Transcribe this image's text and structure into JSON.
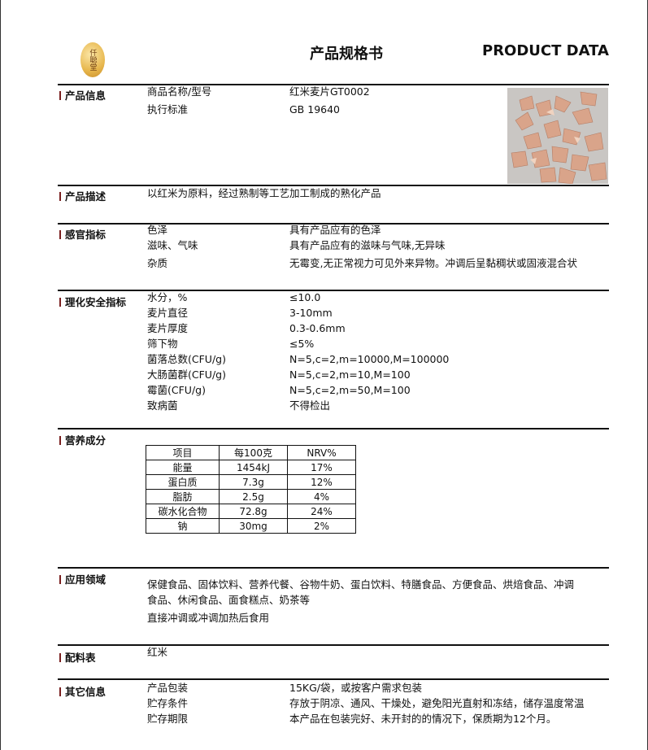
{
  "header": {
    "title_cn": "产品规格书",
    "title_en": "PRODUCT DATA",
    "logo_text": "仟聪堂"
  },
  "sections": {
    "info": {
      "label": "产品信息",
      "rows": [
        [
          "商品名称/型号",
          "红米麦片GT0002"
        ],
        [
          "执行标准",
          "GB 19640"
        ]
      ]
    },
    "desc": {
      "label": "产品描述",
      "text": "以红米为原料，经过熟制等工艺加工制成的熟化产品"
    },
    "sensory": {
      "label": "感官指标",
      "rows": [
        [
          "色泽",
          "具有产品应有的色泽"
        ],
        [
          "滋味、气味",
          "具有产品应有的滋味与气味,无异味"
        ],
        [
          "杂质",
          "无霉变,无正常视力可见外来异物。冲调后呈黏稠状或固液混合状"
        ]
      ]
    },
    "physchem": {
      "label": "理化安全指标",
      "rows": [
        [
          "水分，%",
          "≤10.0"
        ],
        [
          "麦片直径",
          "3-10mm"
        ],
        [
          "麦片厚度",
          "0.3-0.6mm"
        ],
        [
          "筛下物",
          "≤5%"
        ],
        [
          "菌落总数(CFU/g)",
          "N=5,c=2,m=10000,M=100000"
        ],
        [
          "大肠菌群(CFU/g)",
          "N=5,c=2,m=10,M=100"
        ],
        [
          "霉菌(CFU/g)",
          "N=5,c=2,m=50,M=100"
        ],
        [
          "致病菌",
          "不得检出"
        ]
      ]
    },
    "nutrition": {
      "label": "营养成分",
      "header": [
        "项目",
        "每100克",
        "NRV%"
      ],
      "rows": [
        [
          "能量",
          "1454kJ",
          "17%"
        ],
        [
          "蛋白质",
          "7.3g",
          "12%"
        ],
        [
          "脂肪",
          "2.5g",
          "4%"
        ],
        [
          "碳水化合物",
          "72.8g",
          "24%"
        ],
        [
          "钠",
          "30mg",
          "2%"
        ]
      ]
    },
    "application": {
      "label": "应用领域",
      "line1": "保健食品、固体饮料、营养代餐、谷物牛奶、蛋白饮料、特膳食品、方便食品、烘焙食品、冲调",
      "line2": "食品、休闲食品、面食糕点、奶茶等",
      "line3": "直接冲调或冲调加热后食用"
    },
    "ingredients": {
      "label": "配料表",
      "text": "红米"
    },
    "other": {
      "label": "其它信息",
      "rows": [
        [
          "产品包装",
          "15KG/袋，或按客户需求包装"
        ],
        [
          "贮存条件",
          "存放于阴凉、通风、干燥处，避免阳光直射和冻结，储存温度常温"
        ],
        [
          "贮存期限",
          "本产品在包装完好、未开封的的情况下，保质期为12个月。"
        ]
      ]
    }
  }
}
